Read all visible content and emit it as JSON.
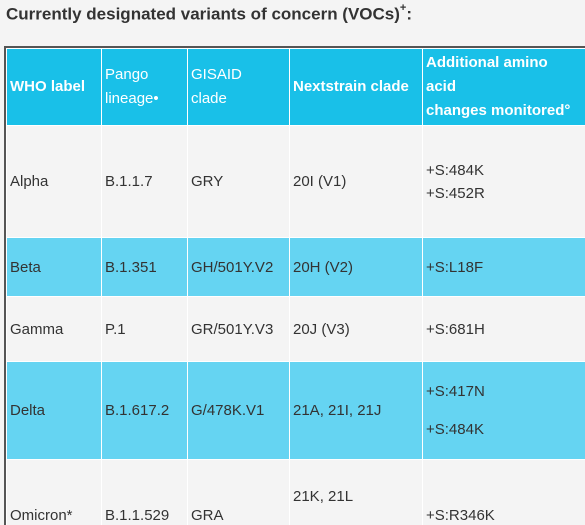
{
  "heading": {
    "text": "Currently designated variants of concern (VOCs)",
    "sup": "+",
    "suffix": ":"
  },
  "table": {
    "headers": {
      "who_label": "WHO label",
      "pango_line1": "Pango",
      "pango_line2": "lineage•",
      "gisaid_line1": "GISAID",
      "gisaid_line2": "clade",
      "nextstrain": "Nextstrain clade",
      "additional_line1": "Additional amino",
      "additional_line2": "acid",
      "additional_line3": "changes monitored°"
    },
    "rows": [
      {
        "who": "Alpha",
        "pango": "B.1.1.7",
        "gisaid": "GRY",
        "nextstrain": "20I (V1)",
        "mutations": [
          "+S:484K",
          "+S:452R"
        ]
      },
      {
        "who": "Beta",
        "pango": "B.1.351",
        "gisaid": "GH/501Y.V2",
        "nextstrain": "20H (V2)",
        "mutations": [
          "+S:L18F"
        ]
      },
      {
        "who": "Gamma",
        "pango": "P.1",
        "gisaid": "GR/501Y.V3",
        "nextstrain": "20J (V3)",
        "mutations": [
          "+S:681H"
        ]
      },
      {
        "who": "Delta",
        "pango": "B.1.617.2",
        "gisaid": "G/478K.V1",
        "nextstrain": "21A, 21I, 21J",
        "mutations": [
          "+S:417N",
          "+S:484K"
        ]
      },
      {
        "who": "Omicron*",
        "pango": "B.1.1.529",
        "gisaid": "GRA",
        "nextstrain": "21K, 21L",
        "mutations": [
          "+S:R346K"
        ]
      }
    ]
  },
  "colors": {
    "header_bg": "#19c0e8",
    "alt_row_bg": "#65d4f2",
    "page_bg": "#f4f4f4",
    "text": "#333333"
  }
}
